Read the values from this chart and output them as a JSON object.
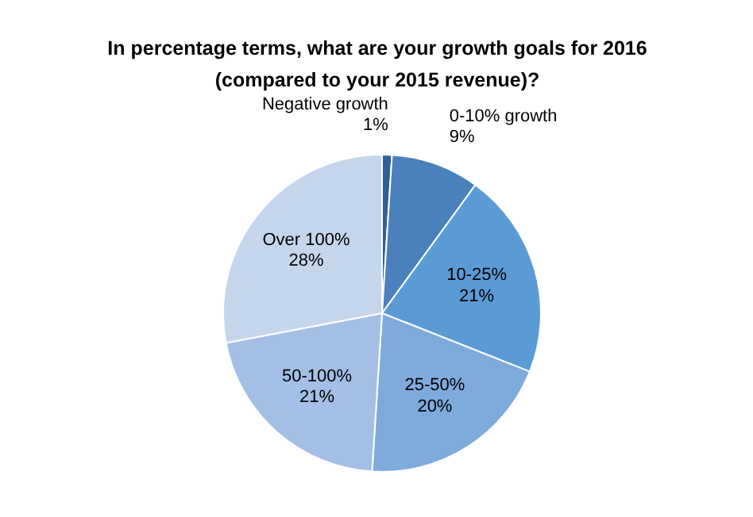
{
  "chart_data": {
    "type": "pie",
    "title": "In percentage terms, what are your growth goals for 2016 (compared to your 2015 revenue)?",
    "categories": [
      "Negative growth",
      "0-10% growth",
      "10-25%",
      "25-50%",
      "50-100%",
      "Over 100%"
    ],
    "values": [
      1,
      9,
      21,
      20,
      21,
      28
    ],
    "colors": [
      "#2e5f96",
      "#4a80bb",
      "#5b9bd5",
      "#7eaadc",
      "#a3bfe6",
      "#c5d5ec"
    ],
    "value_labels": [
      "1%",
      "9%",
      "21%",
      "20%",
      "21%",
      "28%"
    ]
  }
}
